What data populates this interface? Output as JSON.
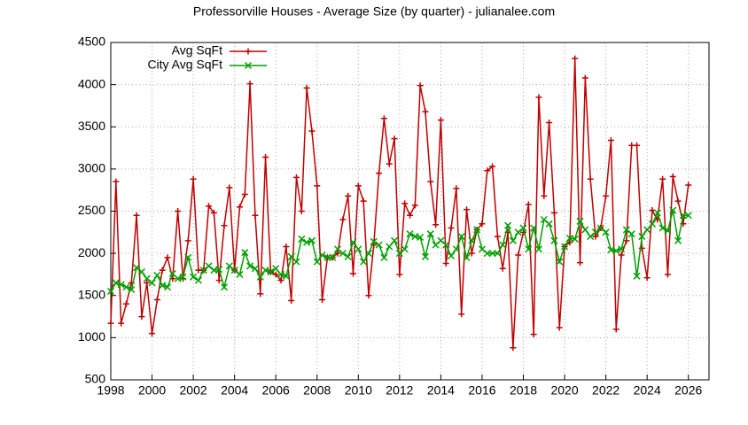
{
  "chart_data": {
    "type": "line",
    "title": "Professorville Houses - Average Size (by quarter) - julianalee.com",
    "x": [
      1998,
      1998.25,
      1998.5,
      1998.75,
      1999,
      1999.25,
      1999.5,
      1999.75,
      2000,
      2000.25,
      2000.5,
      2000.75,
      2001,
      2001.25,
      2001.5,
      2001.75,
      2002,
      2002.25,
      2002.5,
      2002.75,
      2003,
      2003.25,
      2003.5,
      2003.75,
      2004,
      2004.25,
      2004.5,
      2004.75,
      2005,
      2005.25,
      2005.5,
      2005.75,
      2006,
      2006.25,
      2006.5,
      2006.75,
      2007,
      2007.25,
      2007.5,
      2007.75,
      2008,
      2008.25,
      2008.5,
      2008.75,
      2009,
      2009.25,
      2009.5,
      2009.75,
      2010,
      2010.25,
      2010.5,
      2010.75,
      2011,
      2011.25,
      2011.5,
      2011.75,
      2012,
      2012.25,
      2012.5,
      2012.75,
      2013,
      2013.25,
      2013.5,
      2013.75,
      2014,
      2014.25,
      2014.5,
      2014.75,
      2015,
      2015.25,
      2015.5,
      2015.75,
      2016,
      2016.25,
      2016.5,
      2016.75,
      2017,
      2017.25,
      2017.5,
      2017.75,
      2018,
      2018.25,
      2018.5,
      2018.75,
      2019,
      2019.25,
      2019.5,
      2019.75,
      2020,
      2020.25,
      2020.5,
      2020.75,
      2021,
      2021.25,
      2021.5,
      2021.75,
      2022,
      2022.25,
      2022.5,
      2022.75,
      2023,
      2023.25,
      2023.5,
      2023.75,
      2024,
      2024.25,
      2024.5,
      2024.75,
      2025,
      2025.25,
      2025.5,
      2025.75,
      2026
    ],
    "series": [
      {
        "name": "Avg SqFt",
        "color": "#c00000",
        "marker": "plus",
        "values": [
          1170,
          2850,
          1170,
          1400,
          1650,
          2450,
          1250,
          1650,
          1050,
          1450,
          1800,
          1950,
          1700,
          2500,
          1700,
          2150,
          2880,
          1800,
          1800,
          2560,
          2480,
          1680,
          2330,
          2780,
          1800,
          2550,
          2700,
          4010,
          2450,
          1520,
          3140,
          1780,
          1750,
          1680,
          2080,
          1440,
          2900,
          2500,
          3960,
          3450,
          2800,
          1450,
          1950,
          1950,
          2000,
          2400,
          2680,
          1760,
          2800,
          2620,
          1500,
          2100,
          2950,
          3600,
          3060,
          3360,
          1750,
          2590,
          2450,
          2570,
          3990,
          3680,
          2850,
          2340,
          3580,
          1880,
          2300,
          2770,
          1280,
          2520,
          2000,
          2280,
          2350,
          2980,
          3030,
          2200,
          1820,
          2250,
          880,
          1980,
          2250,
          2580,
          1040,
          3850,
          2680,
          3550,
          2480,
          1120,
          2080,
          2130,
          4310,
          1890,
          4080,
          2880,
          2200,
          2300,
          2680,
          3340,
          1100,
          1980,
          2150,
          3280,
          3280,
          2060,
          1710,
          2510,
          2400,
          2880,
          1750,
          2910,
          2620,
          2350,
          2810
        ]
      },
      {
        "name": "City Avg SqFt",
        "color": "#00a000",
        "marker": "cross",
        "values": [
          1550,
          1650,
          1630,
          1600,
          1570,
          1830,
          1780,
          1700,
          1650,
          1740,
          1620,
          1600,
          1760,
          1700,
          1720,
          1950,
          1720,
          1680,
          1800,
          1850,
          1800,
          1810,
          1600,
          1850,
          1800,
          1750,
          2010,
          1850,
          1820,
          1720,
          1800,
          1780,
          1820,
          1750,
          1730,
          1960,
          1900,
          2170,
          2130,
          2150,
          1900,
          1980,
          1950,
          1950,
          2050,
          2000,
          1960,
          2130,
          2050,
          1900,
          2000,
          2140,
          2100,
          1950,
          2080,
          2150,
          2000,
          2050,
          2230,
          2200,
          2190,
          1960,
          2230,
          2100,
          2150,
          2100,
          1970,
          2050,
          2200,
          1950,
          2150,
          2280,
          2050,
          2000,
          2000,
          2000,
          2100,
          2330,
          2150,
          2250,
          2300,
          2050,
          2300,
          2050,
          2400,
          2350,
          2150,
          1900,
          2080,
          2180,
          2170,
          2380,
          2280,
          2200,
          2250,
          2300,
          2250,
          2040,
          2030,
          2050,
          2280,
          2230,
          1730,
          2200,
          2280,
          2350,
          2480,
          2300,
          2270,
          2510,
          2150,
          2450,
          2450
        ]
      }
    ],
    "xlim": [
      1998,
      2027
    ],
    "xticks": [
      1998,
      2000,
      2002,
      2004,
      2006,
      2008,
      2010,
      2012,
      2014,
      2016,
      2018,
      2020,
      2022,
      2024,
      2026
    ],
    "ylim": [
      500,
      4500
    ],
    "yticks": [
      500,
      1000,
      1500,
      2000,
      2500,
      3000,
      3500,
      4000,
      4500
    ],
    "grid": true,
    "legend": "top-left"
  }
}
